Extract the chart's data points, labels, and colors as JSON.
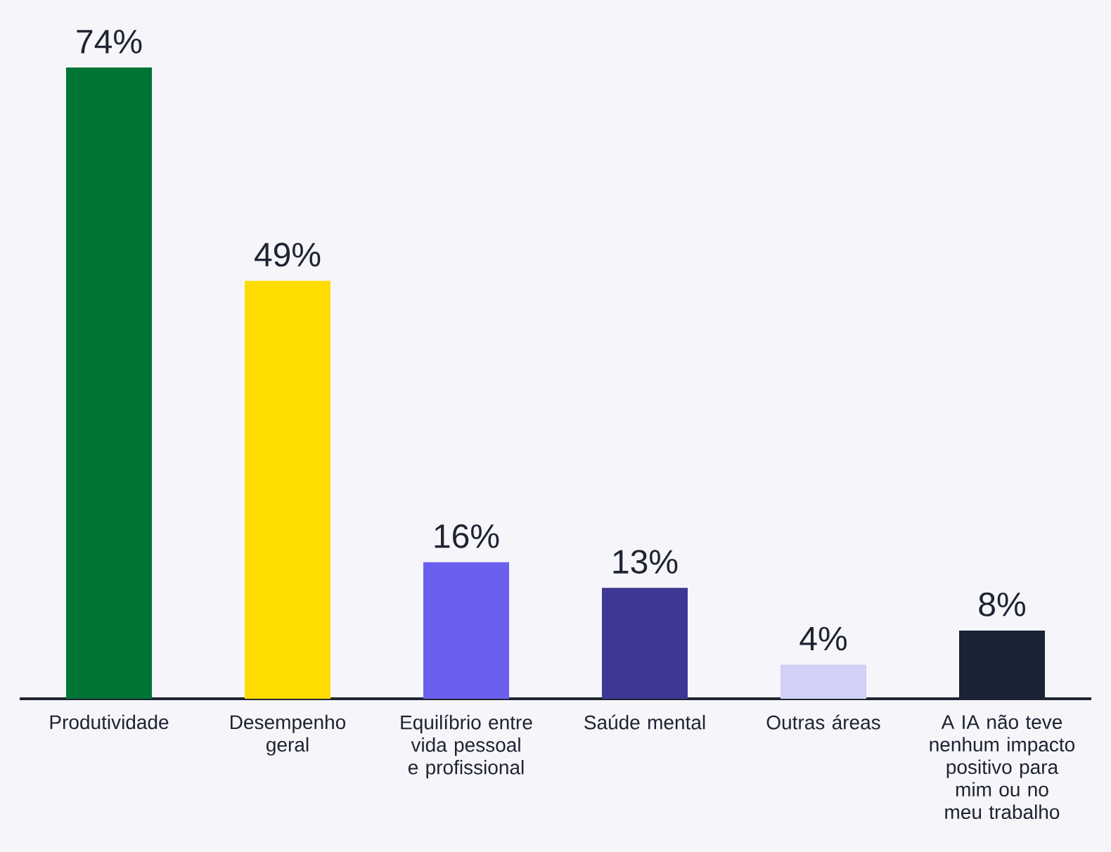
{
  "chart_data": {
    "type": "bar",
    "categories": [
      "Produtividade",
      "Desempenho geral",
      "Equilíbrio entre vida pessoal e profissional",
      "Saúde mental",
      "Outras áreas",
      "A IA não teve nenhum impacto positivo para mim ou no meu trabalho"
    ],
    "values": [
      74,
      49,
      16,
      13,
      4,
      8
    ],
    "colors": [
      "#007434",
      "#ffdc00",
      "#6b5ff0",
      "#3c3893",
      "#d1d0f7",
      "#1a2436"
    ],
    "value_labels": [
      "74%",
      "49%",
      "16%",
      "13%",
      "4%",
      "8%"
    ]
  }
}
